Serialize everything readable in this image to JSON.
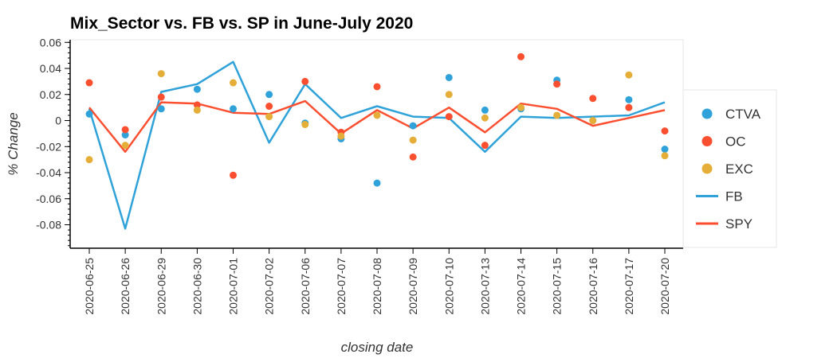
{
  "chart_data": {
    "type": "scatter+line",
    "title": "Mix_Sector vs. FB vs. SP in June-July 2020",
    "xlabel": "closing date",
    "ylabel": "% Change",
    "ylim": [
      -0.098,
      0.062
    ],
    "yticks": [
      "0.06",
      "0.04",
      "0.02",
      "0",
      "-0.02",
      "-0.04",
      "-0.06",
      "-0.08"
    ],
    "ytick_values": [
      0.06,
      0.04,
      0.02,
      0,
      -0.02,
      -0.04,
      -0.06,
      -0.08
    ],
    "categories": [
      "2020-06-25",
      "2020-06-26",
      "2020-06-29",
      "2020-06-30",
      "2020-07-01",
      "2020-07-02",
      "2020-07-06",
      "2020-07-07",
      "2020-07-08",
      "2020-07-09",
      "2020-07-10",
      "2020-07-13",
      "2020-07-14",
      "2020-07-15",
      "2020-07-16",
      "2020-07-17",
      "2020-07-20"
    ],
    "grid": false,
    "legend_position": "right",
    "series": [
      {
        "name": "CTVA",
        "kind": "scatter",
        "color": "#30a2da",
        "values": [
          0.005,
          -0.011,
          0.009,
          0.024,
          0.009,
          0.02,
          -0.002,
          -0.014,
          -0.048,
          -0.004,
          0.033,
          0.008,
          0.009,
          0.031,
          0.0,
          0.016,
          -0.022
        ]
      },
      {
        "name": "OC",
        "kind": "scatter",
        "color": "#fc4f30",
        "values": [
          0.029,
          -0.007,
          0.018,
          0.012,
          -0.042,
          0.011,
          0.03,
          -0.009,
          0.026,
          -0.028,
          0.003,
          -0.019,
          0.049,
          0.028,
          0.017,
          0.01,
          -0.008
        ]
      },
      {
        "name": "EXC",
        "kind": "scatter",
        "color": "#e5ae38",
        "values": [
          -0.03,
          -0.019,
          0.036,
          0.008,
          0.029,
          0.003,
          -0.003,
          -0.012,
          0.004,
          -0.015,
          0.02,
          0.002,
          0.01,
          0.004,
          0.0,
          0.035,
          -0.027
        ]
      },
      {
        "name": "FB",
        "kind": "line",
        "color": "#30a2da",
        "values": [
          0.009,
          -0.083,
          0.022,
          0.028,
          0.045,
          -0.017,
          0.028,
          0.002,
          0.011,
          0.003,
          0.002,
          -0.024,
          0.003,
          0.002,
          0.003,
          0.004,
          0.014
        ]
      },
      {
        "name": "SPY",
        "kind": "line",
        "color": "#fc4f30",
        "values": [
          0.01,
          -0.024,
          0.014,
          0.013,
          0.006,
          0.005,
          0.015,
          -0.01,
          0.008,
          -0.006,
          0.01,
          -0.009,
          0.013,
          0.009,
          -0.004,
          0.002,
          0.008
        ]
      }
    ]
  }
}
